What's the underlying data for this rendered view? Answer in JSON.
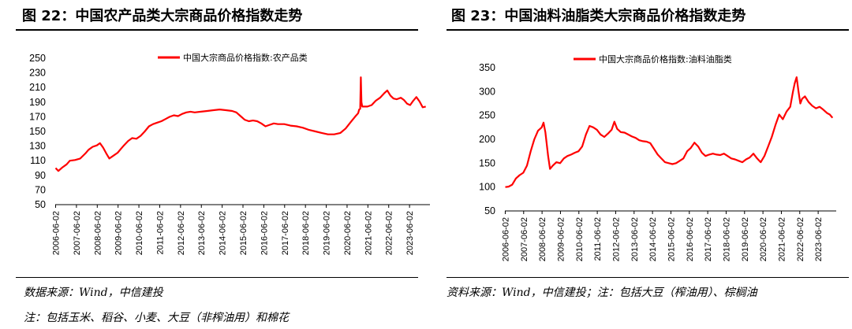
{
  "left": {
    "title": "图 22：中国农产品类大宗商品价格指数走势",
    "source": "数据来源：Wind，中信建投",
    "note": "注：包括玉米、稻谷、小麦、大豆（非榨油用）和棉花"
  },
  "right": {
    "title": "图 23：中国油料油脂类大宗商品价格指数走势",
    "source": "资料来源：Wind，中信建投；注：包括大豆（榨油用）、棕榈油"
  },
  "colors": {
    "series": "#ff0000",
    "axis": "#000000"
  },
  "chart_data": [
    {
      "type": "line",
      "legend": "中国大宗商品价格指数:农产品类",
      "legend_position": "top-center",
      "grid": false,
      "ylim": [
        50,
        250
      ],
      "yticks": [
        50,
        70,
        90,
        110,
        130,
        150,
        170,
        190,
        210,
        230,
        250
      ],
      "xlim": [
        2006.4,
        2024.4
      ],
      "xticks": [
        "2006-06-02",
        "2007-06-02",
        "2008-06-02",
        "2009-06-02",
        "2010-06-02",
        "2011-06-02",
        "2012-06-02",
        "2013-06-02",
        "2014-06-02",
        "2015-06-02",
        "2016-06-02",
        "2017-06-02",
        "2018-06-02",
        "2019-06-02",
        "2020-06-02",
        "2021-06-02",
        "2022-06-02",
        "2023-06-02"
      ],
      "series": [
        {
          "name": "中国大宗商品价格指数:农产品类",
          "points": [
            [
              2006.42,
              100
            ],
            [
              2006.55,
              96
            ],
            [
              2006.75,
              101
            ],
            [
              2006.95,
              105
            ],
            [
              2007.1,
              110
            ],
            [
              2007.35,
              111
            ],
            [
              2007.6,
              113
            ],
            [
              2007.85,
              120
            ],
            [
              2008.0,
              125
            ],
            [
              2008.2,
              129
            ],
            [
              2008.4,
              131
            ],
            [
              2008.55,
              134
            ],
            [
              2008.7,
              128
            ],
            [
              2008.85,
              120
            ],
            [
              2009.0,
              113
            ],
            [
              2009.2,
              117
            ],
            [
              2009.4,
              121
            ],
            [
              2009.55,
              126
            ],
            [
              2009.7,
              131
            ],
            [
              2009.9,
              137
            ],
            [
              2010.1,
              141
            ],
            [
              2010.3,
              140
            ],
            [
              2010.5,
              144
            ],
            [
              2010.7,
              150
            ],
            [
              2010.9,
              157
            ],
            [
              2011.1,
              160
            ],
            [
              2011.3,
              162
            ],
            [
              2011.5,
              164
            ],
            [
              2011.7,
              167
            ],
            [
              2011.9,
              170
            ],
            [
              2012.1,
              172
            ],
            [
              2012.3,
              171
            ],
            [
              2012.5,
              174
            ],
            [
              2012.7,
              176
            ],
            [
              2012.9,
              177
            ],
            [
              2013.1,
              176
            ],
            [
              2013.4,
              177
            ],
            [
              2013.7,
              178
            ],
            [
              2014.0,
              179
            ],
            [
              2014.3,
              180
            ],
            [
              2014.6,
              179
            ],
            [
              2014.9,
              178
            ],
            [
              2015.1,
              176
            ],
            [
              2015.3,
              171
            ],
            [
              2015.5,
              166
            ],
            [
              2015.7,
              164
            ],
            [
              2015.9,
              165
            ],
            [
              2016.1,
              164
            ],
            [
              2016.3,
              161
            ],
            [
              2016.5,
              157
            ],
            [
              2016.7,
              159
            ],
            [
              2016.9,
              161
            ],
            [
              2017.1,
              160
            ],
            [
              2017.4,
              160
            ],
            [
              2017.7,
              158
            ],
            [
              2018.0,
              157
            ],
            [
              2018.3,
              155
            ],
            [
              2018.6,
              152
            ],
            [
              2018.9,
              150
            ],
            [
              2019.2,
              148
            ],
            [
              2019.5,
              146
            ],
            [
              2019.8,
              146
            ],
            [
              2020.1,
              148
            ],
            [
              2020.35,
              154
            ],
            [
              2020.6,
              163
            ],
            [
              2020.8,
              170
            ],
            [
              2020.95,
              175
            ],
            [
              2021.0,
              180
            ],
            [
              2021.05,
              181
            ],
            [
              2021.08,
              224
            ],
            [
              2021.11,
              190
            ],
            [
              2021.15,
              184
            ],
            [
              2021.4,
              184
            ],
            [
              2021.6,
              186
            ],
            [
              2021.8,
              192
            ],
            [
              2022.0,
              196
            ],
            [
              2022.2,
              202
            ],
            [
              2022.35,
              206
            ],
            [
              2022.5,
              199
            ],
            [
              2022.65,
              195
            ],
            [
              2022.8,
              194
            ],
            [
              2023.0,
              196
            ],
            [
              2023.15,
              193
            ],
            [
              2023.3,
              188
            ],
            [
              2023.45,
              186
            ],
            [
              2023.6,
              192
            ],
            [
              2023.75,
              197
            ],
            [
              2023.9,
              191
            ],
            [
              2024.05,
              183
            ],
            [
              2024.2,
              184
            ]
          ]
        }
      ]
    },
    {
      "type": "line",
      "legend": "中国大宗商品价格指数:油料油脂类",
      "legend_position": "top-center",
      "grid": false,
      "ylim": [
        50,
        350
      ],
      "yticks": [
        50,
        100,
        150,
        200,
        250,
        300,
        350
      ],
      "xlim": [
        2006.4,
        2024.4
      ],
      "xticks": [
        "2006-06-02",
        "2007-06-02",
        "2008-06-02",
        "2009-06-02",
        "2010-06-02",
        "2011-06-02",
        "2012-06-02",
        "2013-06-02",
        "2014-06-02",
        "2015-06-02",
        "2016-06-02",
        "2017-06-02",
        "2018-06-02",
        "2019-06-02",
        "2020-06-02",
        "2021-06-02",
        "2022-06-02",
        "2023-06-02"
      ],
      "series": [
        {
          "name": "中国大宗商品价格指数:油料油脂类",
          "points": [
            [
              2006.42,
              100
            ],
            [
              2006.6,
              101
            ],
            [
              2006.8,
              105
            ],
            [
              2007.0,
              118
            ],
            [
              2007.2,
              125
            ],
            [
              2007.4,
              130
            ],
            [
              2007.6,
              145
            ],
            [
              2007.8,
              175
            ],
            [
              2008.0,
              200
            ],
            [
              2008.2,
              218
            ],
            [
              2008.4,
              225
            ],
            [
              2008.5,
              235
            ],
            [
              2008.6,
              215
            ],
            [
              2008.75,
              165
            ],
            [
              2008.85,
              138
            ],
            [
              2009.0,
              145
            ],
            [
              2009.2,
              152
            ],
            [
              2009.4,
              150
            ],
            [
              2009.6,
              160
            ],
            [
              2009.8,
              165
            ],
            [
              2010.0,
              168
            ],
            [
              2010.2,
              172
            ],
            [
              2010.4,
              175
            ],
            [
              2010.6,
              185
            ],
            [
              2010.8,
              210
            ],
            [
              2011.0,
              228
            ],
            [
              2011.2,
              225
            ],
            [
              2011.4,
              220
            ],
            [
              2011.6,
              210
            ],
            [
              2011.8,
              205
            ],
            [
              2012.0,
              212
            ],
            [
              2012.2,
              220
            ],
            [
              2012.35,
              237
            ],
            [
              2012.5,
              222
            ],
            [
              2012.7,
              215
            ],
            [
              2012.9,
              214
            ],
            [
              2013.1,
              210
            ],
            [
              2013.3,
              206
            ],
            [
              2013.5,
              203
            ],
            [
              2013.7,
              198
            ],
            [
              2013.9,
              196
            ],
            [
              2014.1,
              195
            ],
            [
              2014.3,
              192
            ],
            [
              2014.5,
              180
            ],
            [
              2014.7,
              168
            ],
            [
              2014.9,
              160
            ],
            [
              2015.1,
              152
            ],
            [
              2015.3,
              150
            ],
            [
              2015.5,
              148
            ],
            [
              2015.7,
              150
            ],
            [
              2015.9,
              155
            ],
            [
              2016.1,
              160
            ],
            [
              2016.3,
              175
            ],
            [
              2016.5,
              182
            ],
            [
              2016.7,
              193
            ],
            [
              2016.9,
              185
            ],
            [
              2017.1,
              172
            ],
            [
              2017.3,
              165
            ],
            [
              2017.5,
              168
            ],
            [
              2017.7,
              170
            ],
            [
              2017.9,
              168
            ],
            [
              2018.1,
              167
            ],
            [
              2018.3,
              170
            ],
            [
              2018.5,
              165
            ],
            [
              2018.7,
              160
            ],
            [
              2018.9,
              158
            ],
            [
              2019.1,
              155
            ],
            [
              2019.3,
              152
            ],
            [
              2019.5,
              158
            ],
            [
              2019.7,
              162
            ],
            [
              2019.9,
              170
            ],
            [
              2020.1,
              160
            ],
            [
              2020.3,
              152
            ],
            [
              2020.5,
              165
            ],
            [
              2020.7,
              185
            ],
            [
              2020.9,
              205
            ],
            [
              2021.1,
              230
            ],
            [
              2021.3,
              252
            ],
            [
              2021.5,
              242
            ],
            [
              2021.7,
              258
            ],
            [
              2021.9,
              268
            ],
            [
              2022.05,
              300
            ],
            [
              2022.15,
              318
            ],
            [
              2022.25,
              330
            ],
            [
              2022.35,
              300
            ],
            [
              2022.45,
              275
            ],
            [
              2022.55,
              285
            ],
            [
              2022.7,
              290
            ],
            [
              2022.9,
              278
            ],
            [
              2023.1,
              270
            ],
            [
              2023.3,
              265
            ],
            [
              2023.5,
              268
            ],
            [
              2023.7,
              262
            ],
            [
              2023.9,
              255
            ],
            [
              2024.05,
              252
            ],
            [
              2024.2,
              245
            ]
          ]
        }
      ]
    }
  ]
}
